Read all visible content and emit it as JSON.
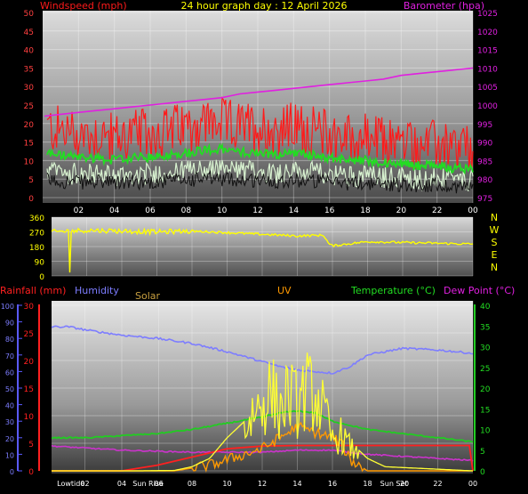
{
  "colors": {
    "windspeed": "#ff1a1a",
    "gust_light": "#d8f2d0",
    "wind_green": "#22dd22",
    "barometer": "#e020e0",
    "direction": "#ffff00",
    "rainfall": "#ff2020",
    "humidity": "#7d7dff",
    "solar": "#ff9900",
    "uv": "#ffff33",
    "temperature": "#22cc22",
    "dewpoint": "#cc33cc",
    "title": "#ffff00",
    "tick_axis": "#ff4040"
  },
  "chart_data": [
    {
      "type": "line",
      "title": "24 hour graph day : 12 April 2026",
      "left_axis_label": "Windspeed (mph)",
      "right_axis_label": "Barometer (hpa)",
      "x_ticks": [
        "02",
        "04",
        "06",
        "08",
        "10",
        "12",
        "14",
        "16",
        "18",
        "20",
        "22",
        "00"
      ],
      "y_left_ticks": [
        "0",
        "5",
        "10",
        "15",
        "20",
        "25",
        "30",
        "35",
        "40",
        "45",
        "50"
      ],
      "y_left_range": [
        0,
        50
      ],
      "y_right_ticks": [
        "975",
        "980",
        "985",
        "990",
        "995",
        "1000",
        "1005",
        "1010",
        "1015",
        "1020",
        "1025"
      ],
      "y_right_range": [
        975,
        1025
      ],
      "series": [
        {
          "name": "Windspeed (mph)",
          "hours": [
            0,
            1,
            2,
            3,
            4,
            5,
            6,
            7,
            8,
            9,
            10,
            11,
            12,
            13,
            14,
            15,
            16,
            17,
            18,
            19,
            20,
            21,
            22,
            23,
            24
          ],
          "values": [
            17,
            16,
            15,
            15,
            14,
            15,
            15,
            16,
            17,
            18,
            18,
            17,
            17,
            16,
            17,
            16,
            15,
            14,
            14,
            13,
            13,
            12,
            12,
            11,
            11
          ]
        },
        {
          "name": "Barometer (hpa)",
          "hours": [
            0,
            1,
            2,
            3,
            4,
            5,
            6,
            7,
            8,
            9,
            10,
            11,
            12,
            13,
            14,
            15,
            16,
            17,
            18,
            19,
            20,
            21,
            22,
            23,
            24
          ],
          "values": [
            997,
            997.5,
            998,
            998.5,
            999,
            999.5,
            1000,
            1000.5,
            1001,
            1001.5,
            1002,
            1003,
            1003.5,
            1004,
            1004.5,
            1005,
            1005.5,
            1006,
            1006.5,
            1007,
            1008,
            1008.5,
            1009,
            1009.5,
            1010
          ]
        }
      ]
    },
    {
      "type": "line",
      "direction_ticks": [
        "360",
        "270",
        "180",
        "90",
        "0"
      ],
      "compass_labels": [
        "N",
        "W",
        "S",
        "E",
        "N"
      ],
      "series": [
        {
          "name": "Wind direction",
          "hours": [
            0,
            2,
            4,
            6,
            8,
            10,
            12,
            14,
            15.5,
            15.8,
            16,
            18,
            20,
            22,
            24
          ],
          "values": [
            270,
            280,
            275,
            270,
            275,
            265,
            255,
            245,
            250,
            195,
            185,
            210,
            205,
            200,
            195
          ]
        }
      ]
    },
    {
      "type": "line",
      "labels": {
        "rainfall": "Rainfall (mm)",
        "humidity": "Humidity",
        "solar": "Solar",
        "uv": "UV",
        "temperature": "Temperature (°C)",
        "dewpoint": "Dew Point (°C)"
      },
      "y_left_ticks": [
        "0",
        "10",
        "20",
        "30",
        "40",
        "50",
        "60",
        "70",
        "80",
        "90",
        "100"
      ],
      "y_left_range": [
        0,
        100
      ],
      "rain_ticks": [
        "0",
        "5",
        "10",
        "15",
        "20",
        "25",
        "30"
      ],
      "rain_range": [
        0,
        30
      ],
      "y_right_ticks": [
        "0",
        "5",
        "10",
        "15",
        "20",
        "25",
        "30",
        "35",
        "40"
      ],
      "y_right_range": [
        0,
        40
      ],
      "x_ticks": [
        "Lowtide",
        "02",
        "04",
        "Sun Rise",
        "06",
        "08",
        "10",
        "12",
        "14",
        "16",
        "18",
        "Sun Set",
        "20",
        "22",
        "00"
      ],
      "series": [
        {
          "name": "Humidity",
          "hours": [
            0,
            1,
            2,
            4,
            6,
            8,
            10,
            12,
            13,
            14,
            15,
            16,
            17,
            18,
            20,
            22,
            24
          ],
          "values": [
            87,
            87,
            85,
            82,
            80,
            77,
            72,
            66,
            63,
            61,
            60,
            59,
            63,
            70,
            74,
            73,
            71
          ]
        },
        {
          "name": "Temperature (°C)",
          "hours": [
            0,
            2,
            4,
            6,
            8,
            10,
            12,
            13,
            14,
            15,
            16,
            17,
            18,
            20,
            22,
            24
          ],
          "values": [
            8,
            8,
            8.5,
            9,
            10,
            11.5,
            13,
            14,
            14.5,
            14,
            12,
            11,
            10,
            9,
            8,
            7
          ]
        },
        {
          "name": "Dew Point (°C)",
          "hours": [
            0,
            4,
            8,
            12,
            14,
            16,
            18,
            20,
            22,
            24
          ],
          "values": [
            6,
            5,
            4.5,
            4.5,
            5,
            5,
            4,
            3.5,
            3,
            2.5
          ]
        },
        {
          "name": "Rainfall (mm)",
          "hours": [
            0,
            4,
            6,
            8,
            10,
            12,
            14,
            16,
            17,
            18,
            20,
            22,
            23.8,
            24
          ],
          "values": [
            0,
            0,
            1,
            2.5,
            4,
            4.5,
            4.6,
            4.6,
            4.6,
            4.6,
            4.6,
            4.6,
            4.6,
            0
          ]
        },
        {
          "name": "UV",
          "hours": [
            0,
            5,
            7,
            8,
            9,
            10,
            11,
            11.5,
            12,
            12.5,
            13,
            13.5,
            14,
            14.5,
            15,
            15.5,
            16,
            16.5,
            17,
            17.5,
            18,
            19,
            24
          ],
          "values": [
            0,
            0,
            0.1,
            1,
            3,
            8,
            12,
            20,
            22,
            27,
            20,
            26,
            22,
            27,
            25,
            20,
            10,
            12,
            8,
            5,
            3,
            1,
            0
          ]
        },
        {
          "name": "Solar",
          "hours": [
            0,
            7,
            9,
            10,
            11,
            12,
            13,
            14,
            15,
            16,
            16.5,
            17,
            18,
            24
          ],
          "values": [
            0,
            0,
            1,
            2,
            3,
            4,
            6,
            8,
            7,
            6,
            5,
            2,
            0,
            0
          ]
        }
      ]
    }
  ]
}
